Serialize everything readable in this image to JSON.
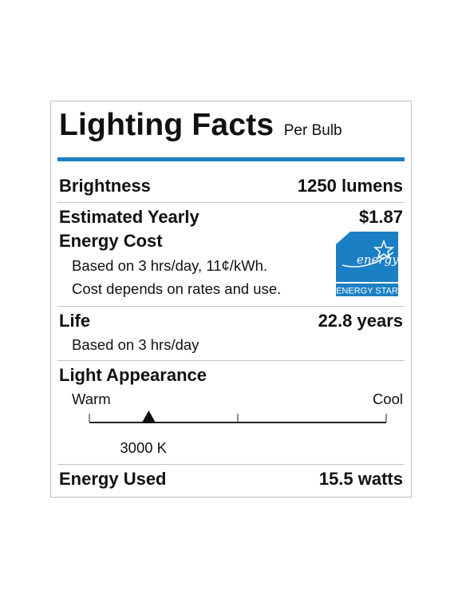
{
  "label": {
    "title": "Lighting Facts",
    "subtitle": "Per Bulb",
    "accent_color": "#1a7fc1",
    "brightness": {
      "label": "Brightness",
      "value": "1250 lumens"
    },
    "energy_cost": {
      "label_line1": "Estimated Yearly",
      "label_line2": "Energy Cost",
      "value": "$1.87",
      "note_line1": "Based on 3 hrs/day, 11¢/kWh.",
      "note_line2": "Cost depends on rates and use."
    },
    "energy_star": {
      "script_text": "energy",
      "caption": "ENERGY STAR",
      "color": "#1b7fc4"
    },
    "life": {
      "label": "Life",
      "value": "22.8 years",
      "note": "Based on 3 hrs/day"
    },
    "light_appearance": {
      "label": "Light Appearance",
      "warm_label": "Warm",
      "cool_label": "Cool",
      "value_label": "3000 K",
      "scale_position": 0.2
    },
    "energy_used": {
      "label": "Energy Used",
      "value": "15.5 watts"
    }
  }
}
